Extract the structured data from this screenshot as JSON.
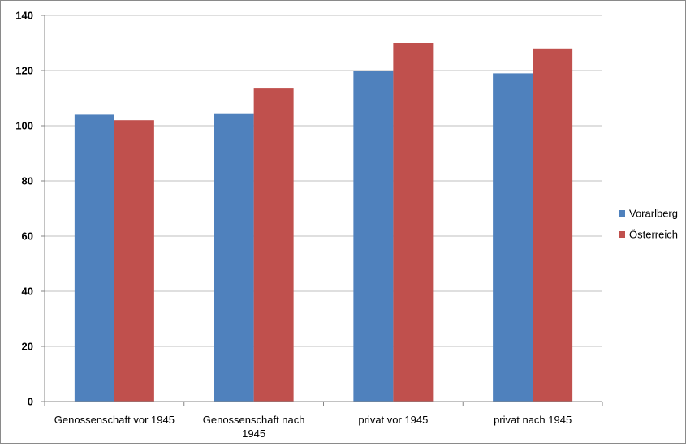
{
  "chart_data": {
    "type": "bar",
    "categories": [
      [
        "Genossenschaft vor 1945"
      ],
      [
        "Genossenschaft nach",
        "1945"
      ],
      [
        "privat vor 1945"
      ],
      [
        "privat nach 1945"
      ]
    ],
    "series": [
      {
        "name": "Vorarlberg",
        "color": "#4f81bd",
        "values": [
          104,
          104.5,
          120,
          119
        ]
      },
      {
        "name": "Österreich",
        "color": "#c0504d",
        "values": [
          102,
          113.5,
          130,
          128
        ]
      }
    ],
    "yticks": [
      "0",
      "20",
      "40",
      "60",
      "80",
      "100",
      "120",
      "140"
    ],
    "ylim": [
      0,
      140
    ],
    "grid": true,
    "legend_position": "right",
    "title": "",
    "xlabel": "",
    "ylabel": ""
  }
}
